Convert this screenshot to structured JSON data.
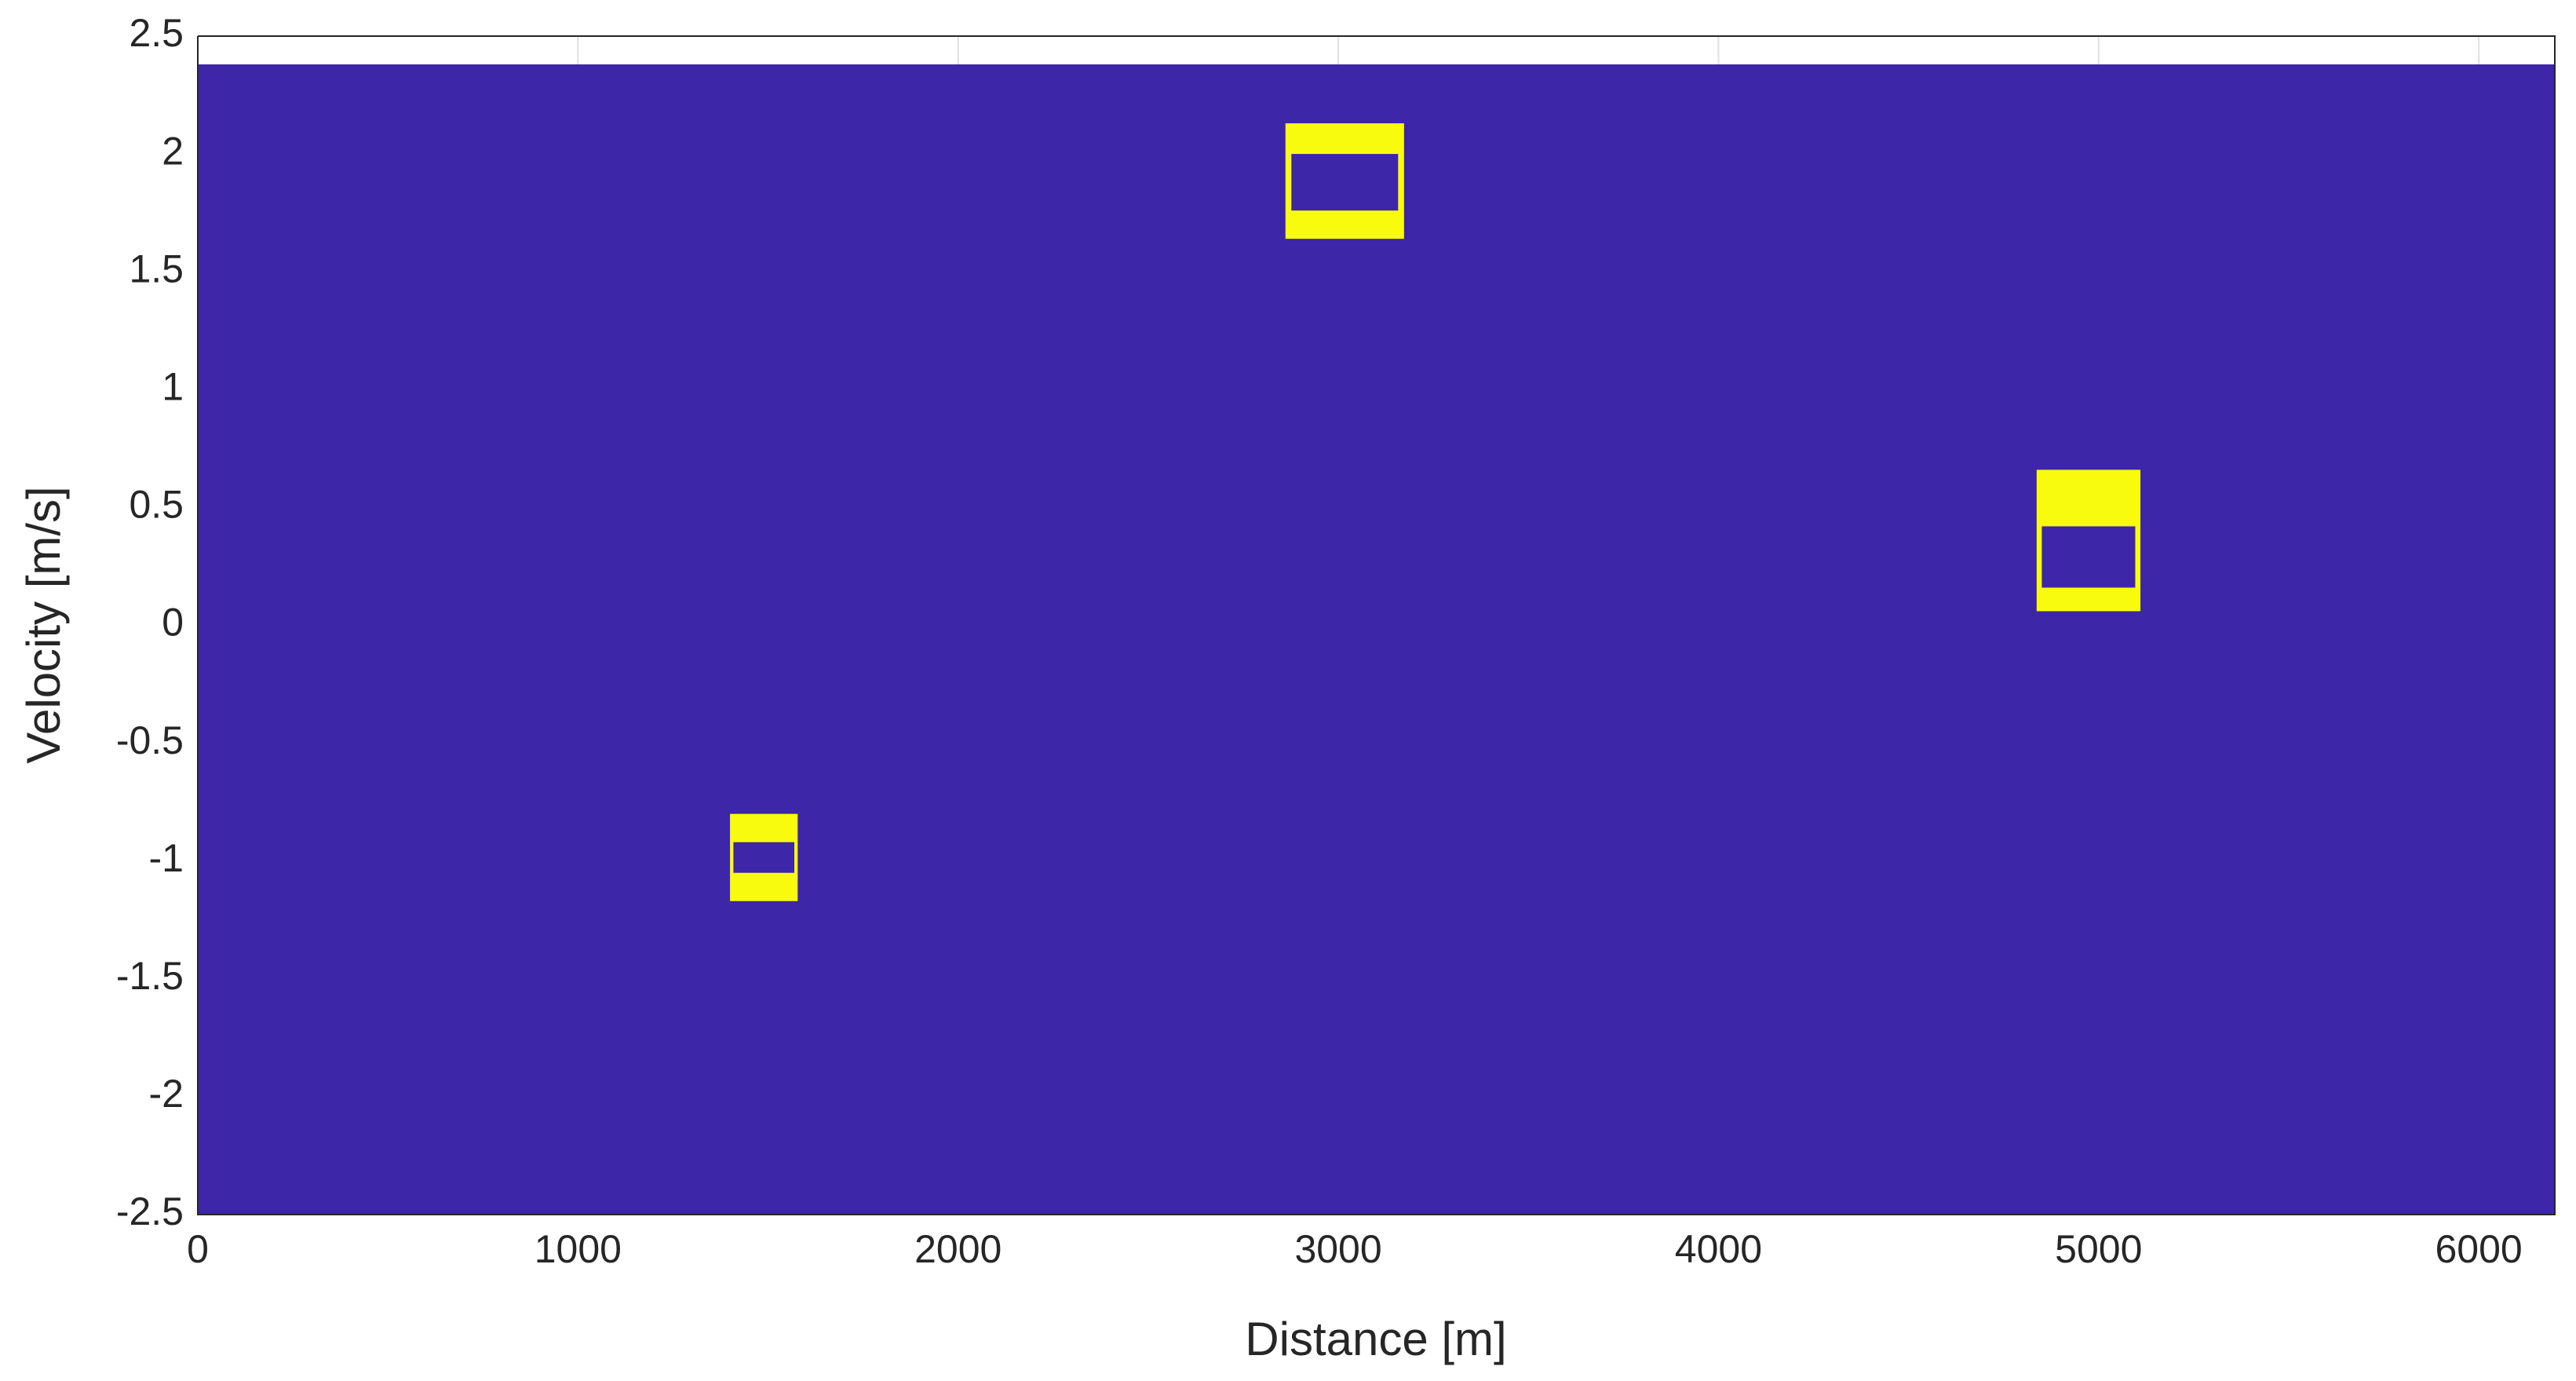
{
  "chart_data": {
    "type": "heatmap",
    "xlabel": "Distance [m]",
    "ylabel": "Velocity [m/s]",
    "xlim": [
      0,
      6200
    ],
    "ylim": [
      -2.5,
      2.5
    ],
    "xticks": [
      0,
      1000,
      2000,
      3000,
      4000,
      5000,
      6000
    ],
    "yticks": [
      -2.5,
      -2,
      -1.5,
      -1,
      -0.5,
      0,
      0.5,
      1,
      1.5,
      2,
      2.5
    ],
    "grid": true,
    "extent": {
      "x": [
        0,
        6200
      ],
      "y": [
        -2.5,
        2.38
      ]
    },
    "background": "#3d26a8",
    "color": "#f9fb0e",
    "blobs": [
      {
        "x": [
          1400,
          1578
        ],
        "y": [
          -1.17,
          -0.8
        ],
        "hole": [
          -1.05,
          -0.92
        ]
      },
      {
        "x": [
          2861,
          3173
        ],
        "y": [
          1.64,
          2.13
        ],
        "hole": [
          1.76,
          2.0
        ]
      },
      {
        "x": [
          4837,
          5110
        ],
        "y": [
          0.06,
          0.66
        ],
        "hole": [
          0.16,
          0.42
        ]
      }
    ]
  }
}
